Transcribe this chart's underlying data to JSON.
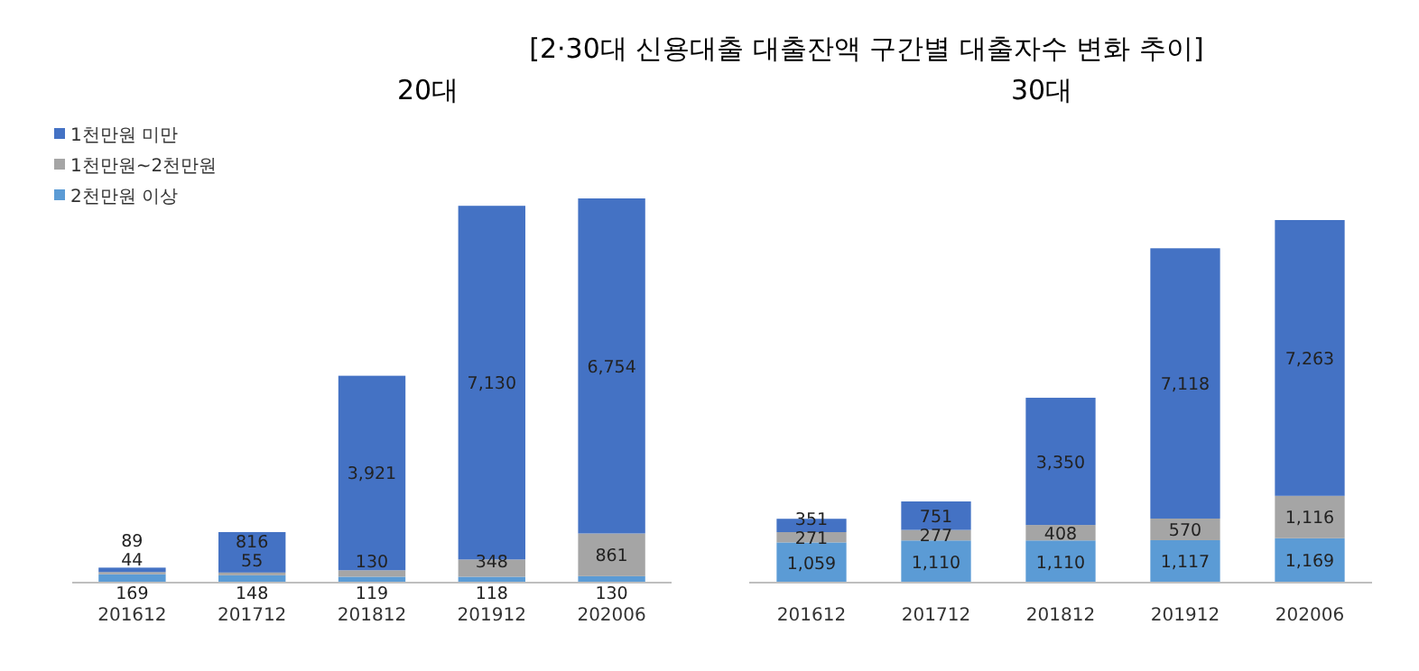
{
  "chart_data": [
    {
      "type": "bar",
      "stacked": true,
      "title": "[2·30대 신용대출 대출잔액 구간별 대출자수 변화 추이]",
      "subtitle": "20대",
      "legend": "top left",
      "categories": [
        "201612",
        "201712",
        "201812",
        "201912",
        "202006"
      ],
      "series": [
        {
          "name": "2천만원 이상",
          "color": "#5b9bd5",
          "values": [
            169,
            148,
            119,
            118,
            130
          ],
          "value_labels": [
            "169",
            "148",
            "119",
            "118",
            "130"
          ]
        },
        {
          "name": "1천만원~2천만원",
          "color": "#a5a5a5",
          "values": [
            44,
            55,
            130,
            348,
            861
          ],
          "value_labels": [
            "44",
            "55",
            "130",
            "348",
            "861"
          ]
        },
        {
          "name": "1천만원 미만",
          "color": "#4472c4",
          "values": [
            89,
            816,
            3921,
            7130,
            6754
          ],
          "value_labels": [
            "89",
            "816",
            "3,921",
            "7,130",
            "6,754"
          ]
        }
      ]
    },
    {
      "type": "bar",
      "stacked": true,
      "title": "30대",
      "categories": [
        "201612",
        "201712",
        "201812",
        "201912",
        "202006"
      ],
      "series": [
        {
          "color": "#5b9bd5",
          "values": [
            1059,
            1110,
            1110,
            1117,
            1169
          ],
          "value_labels": [
            "1,059",
            "1,110",
            "1,110",
            "1,117",
            "1,169"
          ]
        },
        {
          "color": "#a5a5a5",
          "values": [
            271,
            277,
            408,
            570,
            1116
          ],
          "value_labels": [
            "271",
            "277",
            "408",
            "570",
            "1,116"
          ]
        },
        {
          "color": "#4472c4",
          "values": [
            351,
            751,
            3350,
            7118,
            7263
          ],
          "value_labels": [
            "351",
            "751",
            "3,350",
            "7,118",
            "7,263"
          ]
        }
      ]
    }
  ]
}
